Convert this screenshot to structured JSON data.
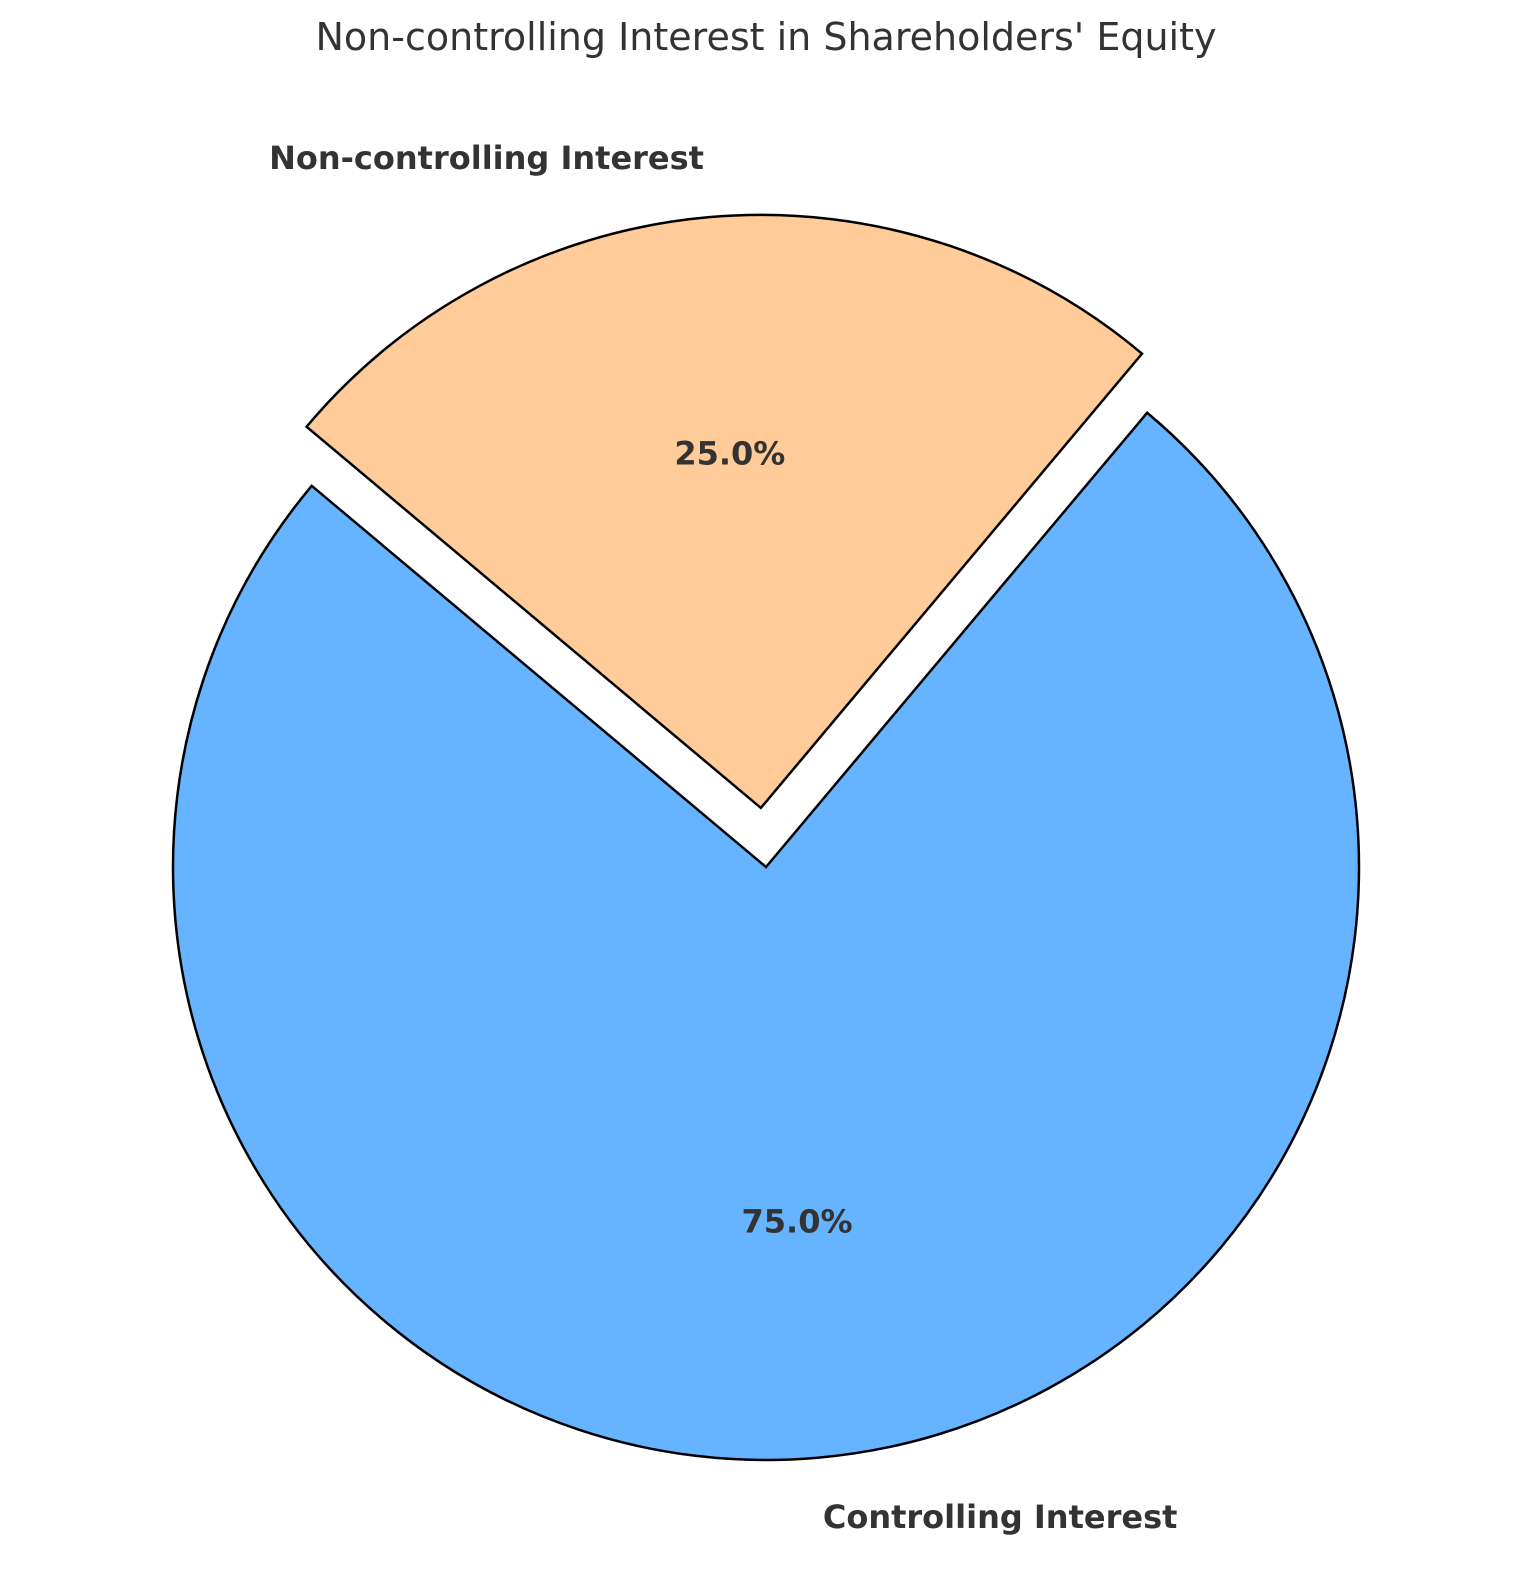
{
  "chart_data": {
    "type": "pie",
    "title": "Non-controlling Interest in Shareholders' Equity",
    "labels": [
      "Controlling Interest",
      "Non-controlling Interest"
    ],
    "values": [
      75,
      25
    ],
    "percent_labels": [
      "75.0%",
      "25.0%"
    ],
    "colors": [
      "#66b3ff",
      "#ffcc99"
    ],
    "explode": [
      0,
      0.1
    ],
    "start_angle_deg": 140,
    "edge_color": "#000000",
    "text_color": "#333333"
  }
}
